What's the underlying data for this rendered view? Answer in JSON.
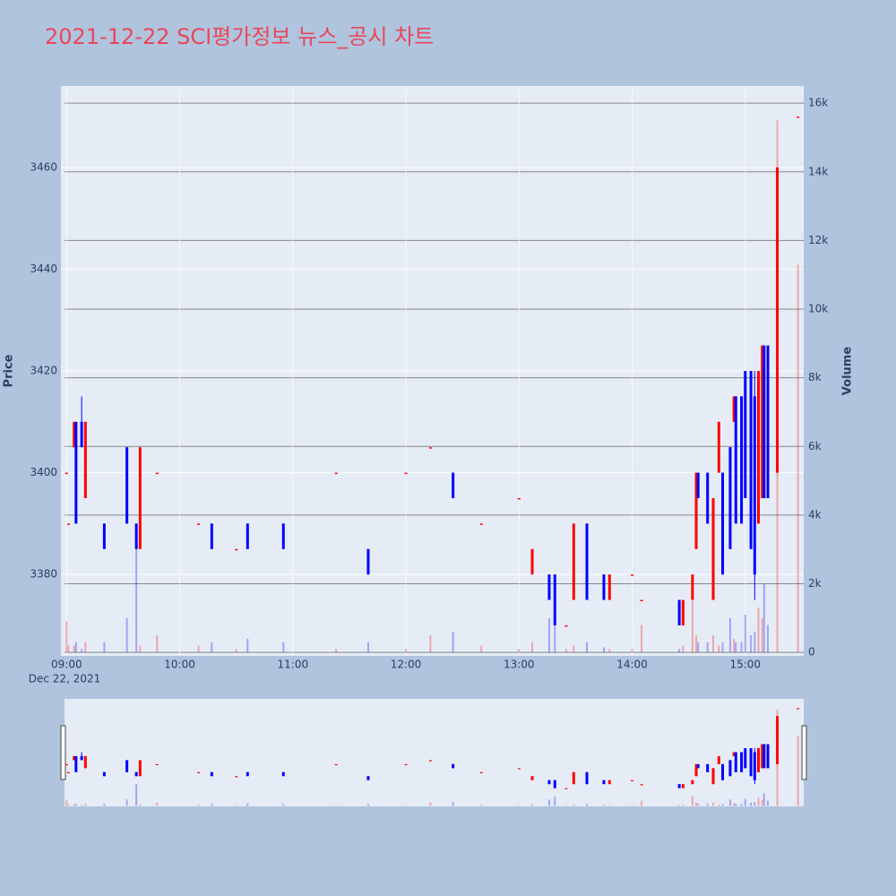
{
  "chart_data": {
    "type": "candlestick",
    "title": "2021-12-22 SCI평가정보 뉴스_공시 차트",
    "ylabel": "Price",
    "y2label": "Volume",
    "x_date_label": "Dec 22, 2021",
    "increasing_color": "#ff0000",
    "decreasing_color": "#0000ff",
    "xlim": [
      "08:57",
      "15:31"
    ],
    "xticks": [
      "09:00",
      "10:00",
      "11:00",
      "12:00",
      "13:00",
      "14:00",
      "15:00"
    ],
    "ylim": [
      3364,
      3476
    ],
    "yticks": [
      3380,
      3400,
      3420,
      3440,
      3460
    ],
    "y2lim": [
      -100,
      16500
    ],
    "y2ticks": [
      0,
      {
        "value": 2000,
        "label": "2k"
      },
      {
        "value": 4000,
        "label": "4k"
      },
      {
        "value": 6000,
        "label": "6k"
      },
      {
        "value": 8000,
        "label": "8k"
      },
      {
        "value": 10000,
        "label": "10k"
      },
      {
        "value": 12000,
        "label": "12k"
      },
      {
        "value": 14000,
        "label": "14k"
      },
      {
        "value": 16000,
        "label": "16k"
      }
    ],
    "x": [
      "09:00",
      "09:01",
      "09:04",
      "09:05",
      "09:08",
      "09:10",
      "09:20",
      "09:32",
      "09:37",
      "09:39",
      "09:48",
      "10:10",
      "10:17",
      "10:30",
      "10:36",
      "10:55",
      "11:23",
      "11:40",
      "12:00",
      "12:13",
      "12:25",
      "12:40",
      "13:00",
      "13:07",
      "13:16",
      "13:19",
      "13:25",
      "13:29",
      "13:36",
      "13:45",
      "13:48",
      "14:00",
      "14:05",
      "14:25",
      "14:27",
      "14:32",
      "14:34",
      "14:35",
      "14:40",
      "14:43",
      "14:46",
      "14:48",
      "14:52",
      "14:54",
      "14:55",
      "14:58",
      "15:00",
      "15:03",
      "15:05",
      "15:07",
      "15:09",
      "15:10",
      "15:12",
      "15:17",
      "15:28"
    ],
    "open": [
      3400,
      3390,
      3405,
      3410,
      3410,
      3395,
      3390,
      3405,
      3390,
      3385,
      3400,
      3390,
      3390,
      3385,
      3390,
      3390,
      3400,
      3385,
      3400,
      3405,
      3400,
      3390,
      3395,
      3380,
      3380,
      3380,
      3370,
      3375,
      3390,
      3380,
      3375,
      3380,
      3375,
      3375,
      3370,
      3375,
      3385,
      3400,
      3400,
      3375,
      3400,
      3400,
      3405,
      3410,
      3415,
      3415,
      3420,
      3420,
      3415,
      3390,
      3395,
      3425,
      3425,
      3400,
      3470
    ],
    "high": [
      3400,
      3390,
      3410,
      3410,
      3415,
      3410,
      3390,
      3405,
      3390,
      3405,
      3400,
      3390,
      3390,
      3385,
      3390,
      3390,
      3400,
      3385,
      3400,
      3405,
      3400,
      3390,
      3395,
      3385,
      3380,
      3380,
      3370,
      3390,
      3390,
      3380,
      3380,
      3380,
      3375,
      3375,
      3375,
      3380,
      3400,
      3400,
      3400,
      3395,
      3410,
      3400,
      3405,
      3415,
      3415,
      3415,
      3420,
      3420,
      3420,
      3420,
      3425,
      3425,
      3425,
      3460,
      3470
    ],
    "low": [
      3400,
      3390,
      3405,
      3390,
      3405,
      3395,
      3385,
      3390,
      3385,
      3385,
      3400,
      3390,
      3385,
      3385,
      3385,
      3385,
      3400,
      3380,
      3400,
      3405,
      3395,
      3390,
      3395,
      3380,
      3375,
      3370,
      3370,
      3375,
      3375,
      3375,
      3375,
      3380,
      3375,
      3370,
      3370,
      3375,
      3385,
      3395,
      3390,
      3375,
      3400,
      3380,
      3385,
      3410,
      3390,
      3390,
      3395,
      3385,
      3375,
      3390,
      3395,
      3395,
      3395,
      3400,
      3470
    ],
    "close": [
      3400,
      3390,
      3410,
      3390,
      3405,
      3410,
      3385,
      3390,
      3385,
      3405,
      3400,
      3390,
      3385,
      3385,
      3385,
      3385,
      3400,
      3380,
      3400,
      3405,
      3395,
      3390,
      3395,
      3385,
      3375,
      3370,
      3370,
      3390,
      3375,
      3375,
      3380,
      3380,
      3375,
      3370,
      3375,
      3380,
      3400,
      3395,
      3390,
      3395,
      3410,
      3380,
      3385,
      3415,
      3390,
      3390,
      3395,
      3385,
      3380,
      3420,
      3425,
      3395,
      3395,
      3460,
      3470
    ],
    "volume": [
      900,
      200,
      200,
      300,
      100,
      300,
      300,
      1000,
      3500,
      200,
      500,
      200,
      300,
      100,
      400,
      300,
      100,
      300,
      100,
      500,
      600,
      200,
      100,
      300,
      1000,
      1500,
      100,
      200,
      300,
      150,
      100,
      100,
      800,
      100,
      200,
      1500,
      500,
      300,
      300,
      500,
      200,
      300,
      1000,
      400,
      300,
      300,
      1100,
      500,
      600,
      1300,
      1000,
      2000,
      800,
      15500,
      11300
    ]
  }
}
